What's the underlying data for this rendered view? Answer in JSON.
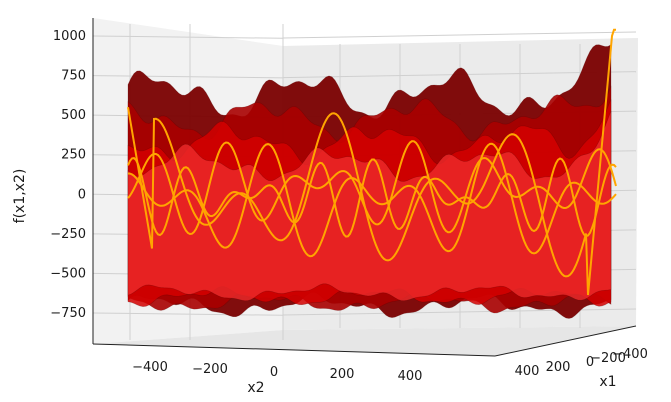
{
  "chart_data": {
    "type": "surface-3d",
    "title": "",
    "xlabel": "x2",
    "ylabel": "x1",
    "zlabel": "f(x1,x2)",
    "x_ticks": [
      "−400",
      "−200",
      "0",
      "200",
      "400"
    ],
    "y_ticks": [
      "400",
      "200",
      "0",
      "−200",
      "−400"
    ],
    "z_ticks": [
      "1000",
      "750",
      "500",
      "250",
      "0",
      "−250",
      "−500",
      "−750"
    ],
    "xlim": [
      -512,
      512
    ],
    "ylim": [
      -512,
      512
    ],
    "zlim": [
      -960,
      1050
    ],
    "view": "side view along x1, elevation near 0",
    "grid": true,
    "surface_color": "#d40000",
    "surface_dark_color": "#7a0000",
    "contour_color": "#ffa500",
    "pane_color": "#f2f2f2",
    "grid_color": "#d0d0d0"
  }
}
